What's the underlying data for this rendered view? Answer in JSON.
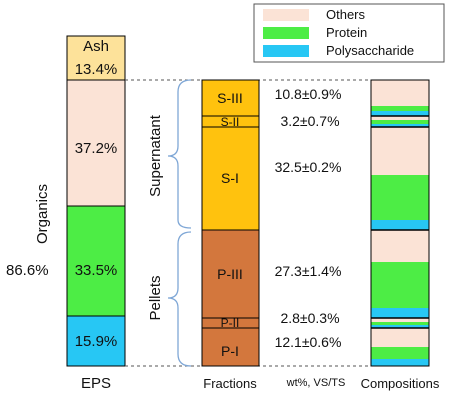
{
  "colors": {
    "ash": "#fde29a",
    "others": "#fbe3d6",
    "protein": "#4ded45",
    "polysaccharide": "#27c7f4",
    "fraction_s": "#ffc20e",
    "fraction_p": "#d3773d",
    "bracket": "#7fa7d6"
  },
  "legend": {
    "others": "Others",
    "protein": "Protein",
    "polysaccharide": "Polysaccharide"
  },
  "eps": {
    "ash_label": "Ash",
    "ash_value": "13.4%",
    "organics_label": "Organics",
    "organics_value": "86.6%",
    "others_value": "37.2%",
    "protein_value": "33.5%",
    "polysaccharide_value": "15.9%",
    "axis_label": "EPS"
  },
  "groups": {
    "supernatant": "Supernatant",
    "pellets": "Pellets"
  },
  "fractions": {
    "axis_label": "Fractions",
    "units_label": "wt%, VS/TS",
    "items": [
      {
        "id": "S-III",
        "label": "S-III",
        "value": "10.8±0.9%"
      },
      {
        "id": "S-II",
        "label": "S-II",
        "value": "3.2±0.7%"
      },
      {
        "id": "S-I",
        "label": "S-I",
        "value": "32.5±0.2%"
      },
      {
        "id": "P-III",
        "label": "P-III",
        "value": "27.3±1.4%"
      },
      {
        "id": "P-II",
        "label": "P-II",
        "value": "2.8±0.3%"
      },
      {
        "id": "P-I",
        "label": "P-I",
        "value": "12.1±0.6%"
      }
    ]
  },
  "compositions": {
    "axis_label": "Compositions"
  }
}
